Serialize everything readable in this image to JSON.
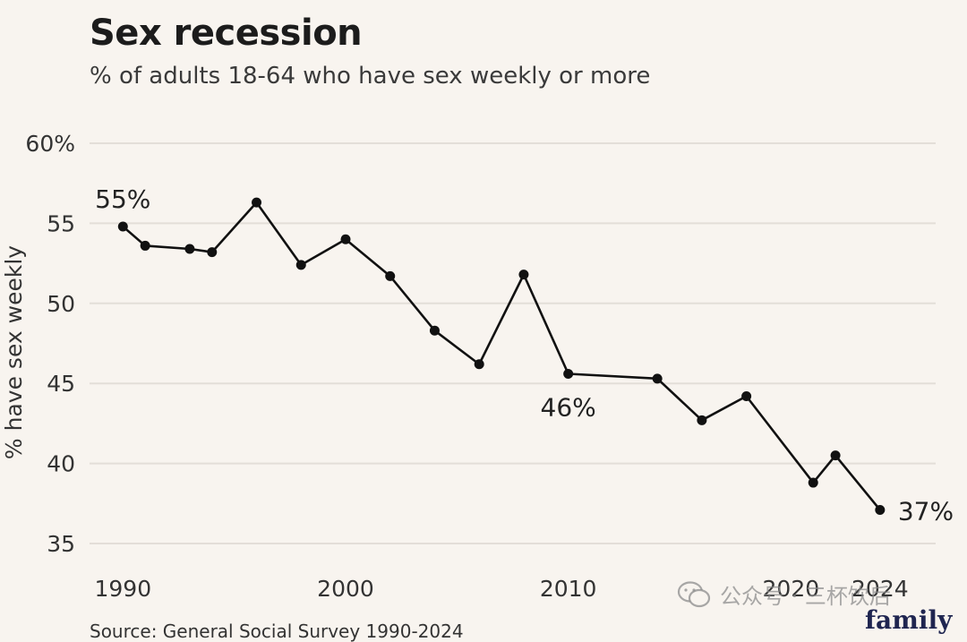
{
  "header": {
    "title": "Sex recession",
    "subtitle": "% of adults 18-64 who have sex weekly or more"
  },
  "chart_data": {
    "type": "line",
    "title": "Sex recession",
    "subtitle": "% of adults 18-64 who have sex weekly or more",
    "xlabel": "",
    "ylabel": "% have sex weekly",
    "xlim": [
      1988.5,
      2026.5
    ],
    "ylim": [
      35,
      60
    ],
    "x_ticks": [
      1990,
      2000,
      2010,
      2020,
      2024
    ],
    "y_ticks": [
      35,
      40,
      45,
      50,
      55,
      60
    ],
    "y_tick_labels": [
      "35",
      "40",
      "45",
      "50",
      "55",
      "60%"
    ],
    "grid": true,
    "series": [
      {
        "name": "% have sex weekly",
        "color": "#111111",
        "x": [
          1990,
          1991,
          1993,
          1994,
          1996,
          1998,
          2000,
          2002,
          2004,
          2006,
          2008,
          2010,
          2014,
          2016,
          2018,
          2021,
          2022,
          2024
        ],
        "y": [
          54.8,
          53.6,
          53.4,
          53.2,
          56.3,
          52.4,
          54.0,
          51.7,
          48.3,
          46.2,
          51.8,
          45.6,
          45.3,
          42.7,
          44.2,
          38.8,
          40.5,
          37.1
        ]
      }
    ],
    "annotations": [
      {
        "text": "55%",
        "x": 1990,
        "y": 54.8,
        "position": "above"
      },
      {
        "text": "46%",
        "x": 2010,
        "y": 45.6,
        "position": "below"
      },
      {
        "text": "37%",
        "x": 2024,
        "y": 37.1,
        "position": "right"
      }
    ]
  },
  "footer": {
    "source": "Source: General Social Survey 1990-2024",
    "brand": "family",
    "watermark_text": "公众号 · 三杯饮后"
  },
  "colors": {
    "background": "#f8f4ef",
    "grid": "#e3ded8",
    "line": "#111111",
    "brand": "#1f2550"
  }
}
